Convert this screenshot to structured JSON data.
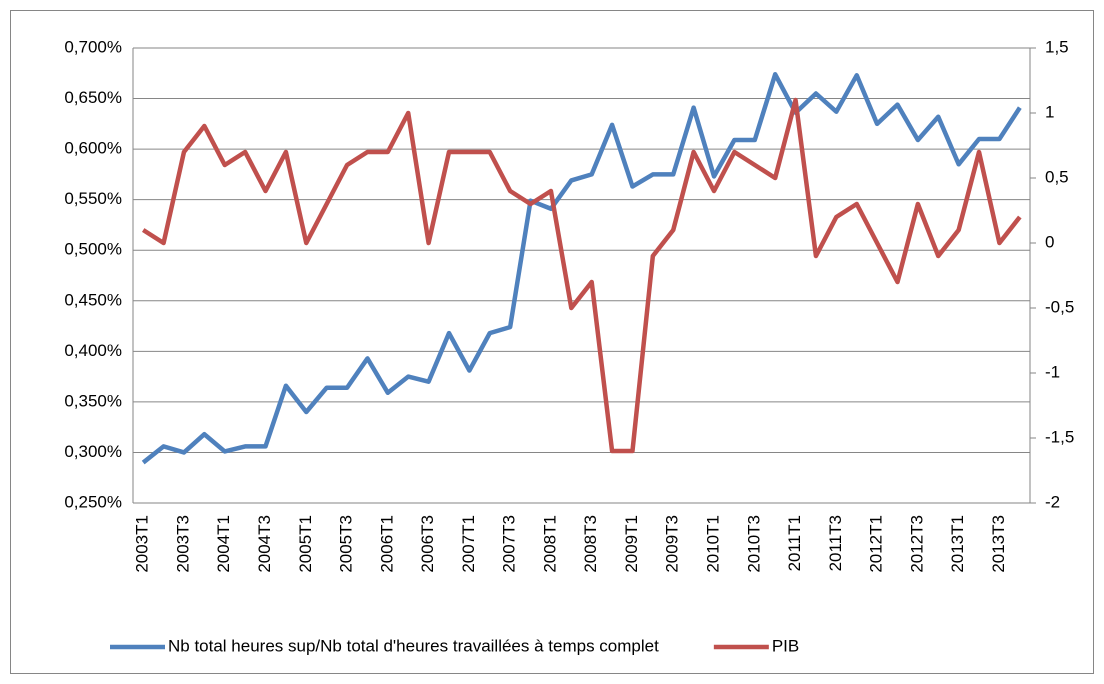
{
  "chart_data": {
    "type": "line",
    "categories": [
      "2003T1",
      null,
      "2003T3",
      null,
      "2004T1",
      null,
      "2004T3",
      null,
      "2005T1",
      null,
      "2005T3",
      null,
      "2006T1",
      null,
      "2006T3",
      null,
      "2007T1",
      null,
      "2007T3",
      null,
      "2008T1",
      null,
      "2008T3",
      null,
      "2009T1",
      null,
      "2009T3",
      null,
      "2010T1",
      null,
      "2010T3",
      null,
      "2011T1",
      null,
      "2011T3",
      null,
      "2012T1",
      null,
      "2012T3",
      null,
      "2013T1",
      null,
      "2013T3",
      null
    ],
    "series": [
      {
        "name": "Nb total heures sup/Nb total d'heures travaillées à temps complet",
        "color": "#4f81bd",
        "axis": "y",
        "values": [
          0.29,
          0.306,
          0.3,
          0.318,
          0.301,
          0.306,
          0.306,
          0.366,
          0.34,
          0.364,
          0.364,
          0.393,
          0.359,
          0.375,
          0.37,
          0.418,
          0.381,
          0.418,
          0.424,
          0.549,
          0.541,
          0.569,
          0.575,
          0.624,
          0.563,
          0.575,
          0.575,
          0.641,
          0.573,
          0.609,
          0.609,
          0.674,
          0.636,
          0.655,
          0.637,
          0.673,
          0.625,
          0.644,
          0.609,
          0.632,
          0.585,
          0.61,
          0.61,
          0.641
        ]
      },
      {
        "name": "PIB",
        "color": "#c0504d",
        "axis": "y2",
        "values": [
          0.1,
          0,
          0.7,
          0.9,
          0.6,
          0.7,
          0.4,
          0.7,
          0,
          0.3,
          0.6,
          0.7,
          0.7,
          1.0,
          0,
          0.7,
          0.7,
          0.7,
          0.4,
          0.3,
          0.4,
          -0.5,
          -0.3,
          -1.6,
          -1.6,
          -0.1,
          0.1,
          0.7,
          0.4,
          0.7,
          0.6,
          0.5,
          1.1,
          -0.1,
          0.2,
          0.3,
          0,
          -0.3,
          0.3,
          -0.1,
          0.1,
          0.7,
          0,
          0.2
        ]
      }
    ],
    "ylim": [
      0.25,
      0.7
    ],
    "yticks": [
      {
        "value": 0.25,
        "label": "0,250%"
      },
      {
        "value": 0.3,
        "label": "0,300%"
      },
      {
        "value": 0.35,
        "label": "0,350%"
      },
      {
        "value": 0.4,
        "label": "0,400%"
      },
      {
        "value": 0.45,
        "label": "0,450%"
      },
      {
        "value": 0.5,
        "label": "0,500%"
      },
      {
        "value": 0.55,
        "label": "0,550%"
      },
      {
        "value": 0.6,
        "label": "0,600%"
      },
      {
        "value": 0.65,
        "label": "0,650%"
      },
      {
        "value": 0.7,
        "label": "0,700%"
      }
    ],
    "y2lim": [
      -2,
      1.5
    ],
    "y2ticks": [
      -2,
      {
        "value": -1.5,
        "label": "-1,5"
      },
      -1,
      {
        "value": -0.5,
        "label": "-0,5"
      },
      0,
      {
        "value": 0.5,
        "label": "0,5"
      },
      1,
      {
        "value": 1.5,
        "label": "1,5"
      }
    ],
    "grid": true,
    "legend": "bottom"
  }
}
